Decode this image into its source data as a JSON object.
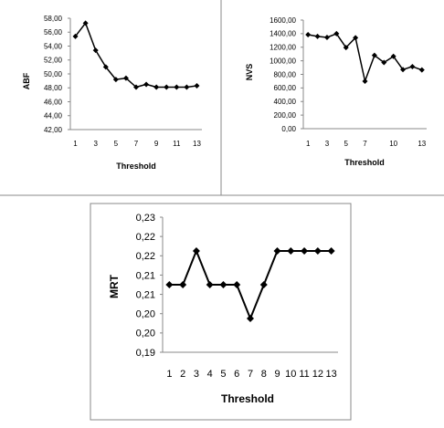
{
  "chart_data": [
    {
      "type": "line",
      "title": "",
      "xlabel": "Threshold",
      "ylabel": "ABF",
      "categories": [
        1,
        2,
        3,
        4,
        5,
        6,
        7,
        8,
        9,
        10,
        11,
        12,
        13
      ],
      "x_tick_labels": [
        "1",
        "3",
        "5",
        "7",
        "9",
        "11",
        "13"
      ],
      "y_tick_labels": [
        "42,00",
        "44,00",
        "46,00",
        "48,00",
        "50,00",
        "52,00",
        "54,00",
        "56,00",
        "58,00"
      ],
      "ylim": [
        42,
        58
      ],
      "grid": false,
      "series": [
        {
          "values": [
            55.4,
            57.3,
            53.4,
            51.0,
            49.2,
            49.4,
            48.1,
            48.5,
            48.1,
            48.1,
            48.1,
            48.1,
            48.3
          ]
        }
      ]
    },
    {
      "type": "line",
      "title": "",
      "xlabel": "Threshold",
      "ylabel": "NVS",
      "categories": [
        1,
        2,
        3,
        4,
        5,
        6,
        7,
        8,
        9,
        10,
        11,
        12,
        13
      ],
      "x_tick_labels": [
        "1",
        "3",
        "5",
        "7",
        "10",
        "13"
      ],
      "y_tick_labels": [
        "0,00",
        "200,00",
        "400,00",
        "600,00",
        "800,00",
        "1000,00",
        "1200,00",
        "1400,00",
        "1600,00"
      ],
      "ylim": [
        0,
        1600
      ],
      "grid": false,
      "series": [
        {
          "values": [
            1385,
            1360,
            1345,
            1400,
            1195,
            1340,
            700,
            1080,
            975,
            1065,
            870,
            915,
            865
          ]
        }
      ]
    },
    {
      "type": "line",
      "title": "",
      "xlabel": "Threshold",
      "ylabel": "MRT",
      "categories": [
        1,
        2,
        3,
        4,
        5,
        6,
        7,
        8,
        9,
        10,
        11,
        12,
        13
      ],
      "x_tick_labels": [
        "1",
        "2",
        "3",
        "4",
        "5",
        "6",
        "7",
        "8",
        "9",
        "10",
        "11",
        "12",
        "13"
      ],
      "y_tick_labels": [
        "0,19",
        "0,20",
        "0,20",
        "0,21",
        "0,21",
        "0,22",
        "0,22",
        "0,23"
      ],
      "ylim": [
        0.19,
        0.23
      ],
      "grid": false,
      "series": [
        {
          "values": [
            0.21,
            0.21,
            0.22,
            0.21,
            0.21,
            0.21,
            0.2,
            0.21,
            0.22,
            0.22,
            0.22,
            0.22,
            0.22
          ]
        }
      ]
    }
  ]
}
